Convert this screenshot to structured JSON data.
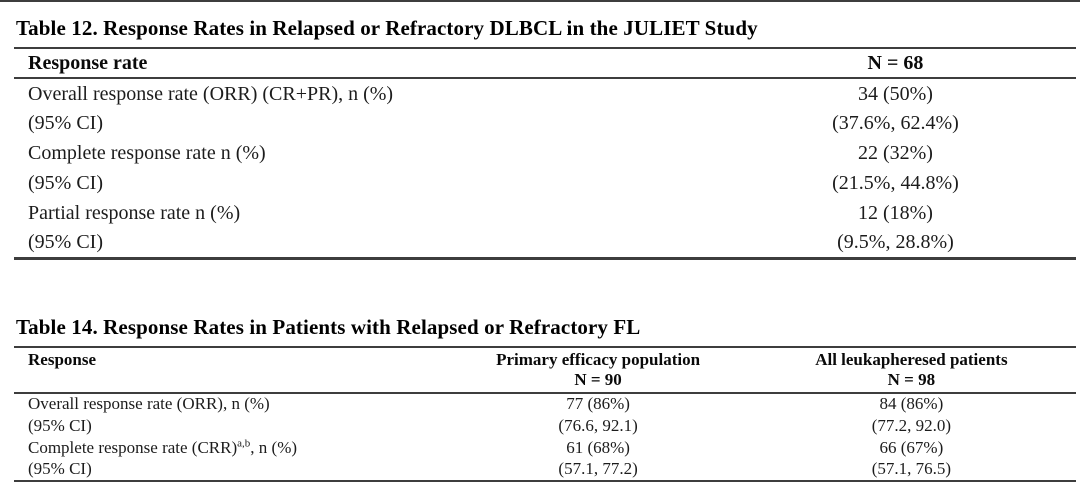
{
  "theme": {
    "background": "#ffffff",
    "text_color": "#1c1c1c",
    "title_color": "#000000",
    "rule_color": "#3d3d3d"
  },
  "table12": {
    "title": "Table 12. Response Rates in Relapsed or Refractory DLBCL in the JULIET Study",
    "columns": [
      "Response rate",
      "N = 68"
    ],
    "rows": [
      {
        "label": "Overall response rate (ORR) (CR+PR), n (%)",
        "value": "34 (50%)"
      },
      {
        "label": "(95% CI)",
        "value": "(37.6%, 62.4%)"
      },
      {
        "label": "Complete response rate n (%)",
        "value": "22 (32%)"
      },
      {
        "label": "(95% CI)",
        "value": "(21.5%, 44.8%)"
      },
      {
        "label": "Partial response rate n (%)",
        "value": "12 (18%)"
      },
      {
        "label": "(95% CI)",
        "value": "(9.5%, 28.8%)"
      }
    ]
  },
  "table14": {
    "title": "Table 14. Response Rates in Patients with Relapsed or Refractory FL",
    "columns": {
      "response": "Response",
      "col2_line1": "Primary efficacy population",
      "col2_line2": "N = 90",
      "col3_line1": "All leukapheresed patients",
      "col3_line2": "N = 98"
    },
    "rows": [
      {
        "label_pre": "Overall response rate (ORR), n (%)",
        "sup": "",
        "label_post": "",
        "primary": "77 (86%)",
        "all": "84 (86%)"
      },
      {
        "label_pre": "(95% CI)",
        "sup": "",
        "label_post": "",
        "primary": "(76.6, 92.1)",
        "all": "(77.2, 92.0)"
      },
      {
        "label_pre": "Complete response rate (CRR)",
        "sup": "a,b",
        "label_post": ", n (%)",
        "primary": "61 (68%)",
        "all": "66 (67%)"
      },
      {
        "label_pre": "(95% CI)",
        "sup": "",
        "label_post": "",
        "primary": "(57.1, 77.2)",
        "all": "(57.1, 76.5)"
      }
    ]
  }
}
